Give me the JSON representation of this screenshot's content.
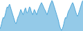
{
  "chart_data": {
    "type": "area",
    "values": [
      18,
      22,
      28,
      35,
      40,
      38,
      42,
      48,
      55,
      60,
      58,
      62,
      65,
      60,
      55,
      50,
      45,
      40,
      35,
      30,
      28,
      32,
      38,
      42,
      45,
      50,
      55,
      52,
      48,
      45,
      50,
      55,
      58,
      52,
      48,
      50,
      55,
      60,
      58,
      52,
      48,
      45,
      50,
      55,
      52,
      48,
      45,
      50,
      55,
      58,
      62,
      65,
      68,
      65,
      62,
      58,
      55,
      52,
      48,
      45,
      50,
      55,
      60,
      65,
      68,
      72,
      70,
      65,
      60,
      55,
      50,
      45,
      40,
      35,
      28,
      22,
      18,
      15,
      18,
      22,
      28,
      35,
      40,
      38,
      42,
      48,
      52,
      55,
      58,
      62,
      65,
      68,
      65,
      60,
      55,
      50,
      45,
      42,
      45,
      50,
      55,
      60,
      65,
      70,
      72
    ],
    "color": "#4da6d8",
    "ylim": [
      14,
      73
    ],
    "grid": false,
    "tick_labels": false
  }
}
